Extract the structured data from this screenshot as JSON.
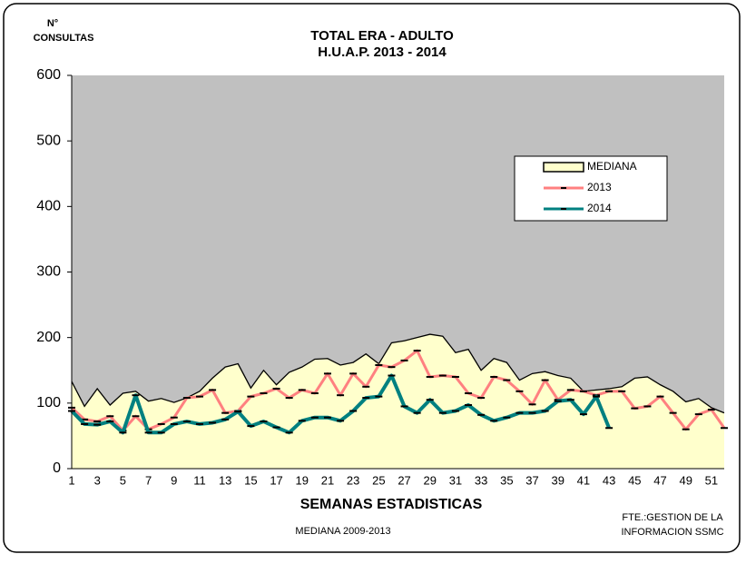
{
  "chart_data": {
    "type": "line",
    "title": "TOTAL ERA - ADULTO",
    "subtitle": "H.U.A.P.   2013 - 2014",
    "ylabel": [
      "N°",
      "CONSULTAS"
    ],
    "xlabel": "SEMANAS ESTADISTICAS",
    "caption": "MEDIANA 2009-2013",
    "note": [
      "FTE.:GESTION DE LA",
      "INFORMACION SSMC"
    ],
    "categories": [
      1,
      null,
      3,
      null,
      5,
      null,
      7,
      null,
      9,
      null,
      11,
      null,
      13,
      null,
      15,
      null,
      17,
      null,
      19,
      null,
      21,
      null,
      23,
      null,
      25,
      null,
      27,
      null,
      29,
      null,
      31,
      null,
      33,
      null,
      35,
      null,
      37,
      null,
      39,
      null,
      41,
      null,
      43,
      null,
      45,
      null,
      47,
      null,
      49,
      null,
      51,
      null
    ],
    "ylim": [
      0,
      600
    ],
    "yticks": [
      0,
      100,
      200,
      300,
      400,
      500,
      600
    ],
    "plot_background": "#c0c0c0",
    "series": [
      {
        "name": "MEDIANA",
        "style": "area",
        "color": "#ffffcc",
        "line_color": "#000000",
        "values": [
          133,
          95,
          122,
          97,
          115,
          118,
          103,
          107,
          101,
          108,
          118,
          138,
          155,
          160,
          123,
          150,
          128,
          147,
          155,
          167,
          168,
          158,
          162,
          175,
          160,
          192,
          195,
          200,
          205,
          202,
          177,
          182,
          150,
          168,
          162,
          135,
          145,
          148,
          142,
          138,
          118,
          120,
          122,
          125,
          138,
          140,
          128,
          118,
          102,
          107,
          93,
          85
        ]
      },
      {
        "name": "2013",
        "style": "line",
        "color": "#ff8080",
        "values": [
          93,
          75,
          72,
          80,
          58,
          80,
          60,
          68,
          78,
          108,
          110,
          120,
          85,
          88,
          110,
          115,
          122,
          108,
          120,
          115,
          145,
          112,
          145,
          125,
          158,
          155,
          165,
          180,
          140,
          142,
          140,
          115,
          108,
          140,
          135,
          118,
          98,
          135,
          105,
          120,
          118,
          112,
          118,
          118,
          92,
          95,
          110,
          85,
          60,
          83,
          90,
          62
        ]
      },
      {
        "name": "2014",
        "style": "line",
        "color": "#008080",
        "values": [
          88,
          68,
          67,
          72,
          55,
          112,
          55,
          55,
          68,
          72,
          68,
          70,
          75,
          87,
          65,
          72,
          63,
          55,
          73,
          78,
          78,
          73,
          88,
          108,
          110,
          142,
          95,
          85,
          105,
          85,
          88,
          97,
          82,
          73,
          78,
          85,
          85,
          88,
          103,
          105,
          83,
          110,
          62,
          null,
          null,
          null,
          null,
          null,
          null,
          null,
          null,
          null
        ]
      }
    ]
  }
}
